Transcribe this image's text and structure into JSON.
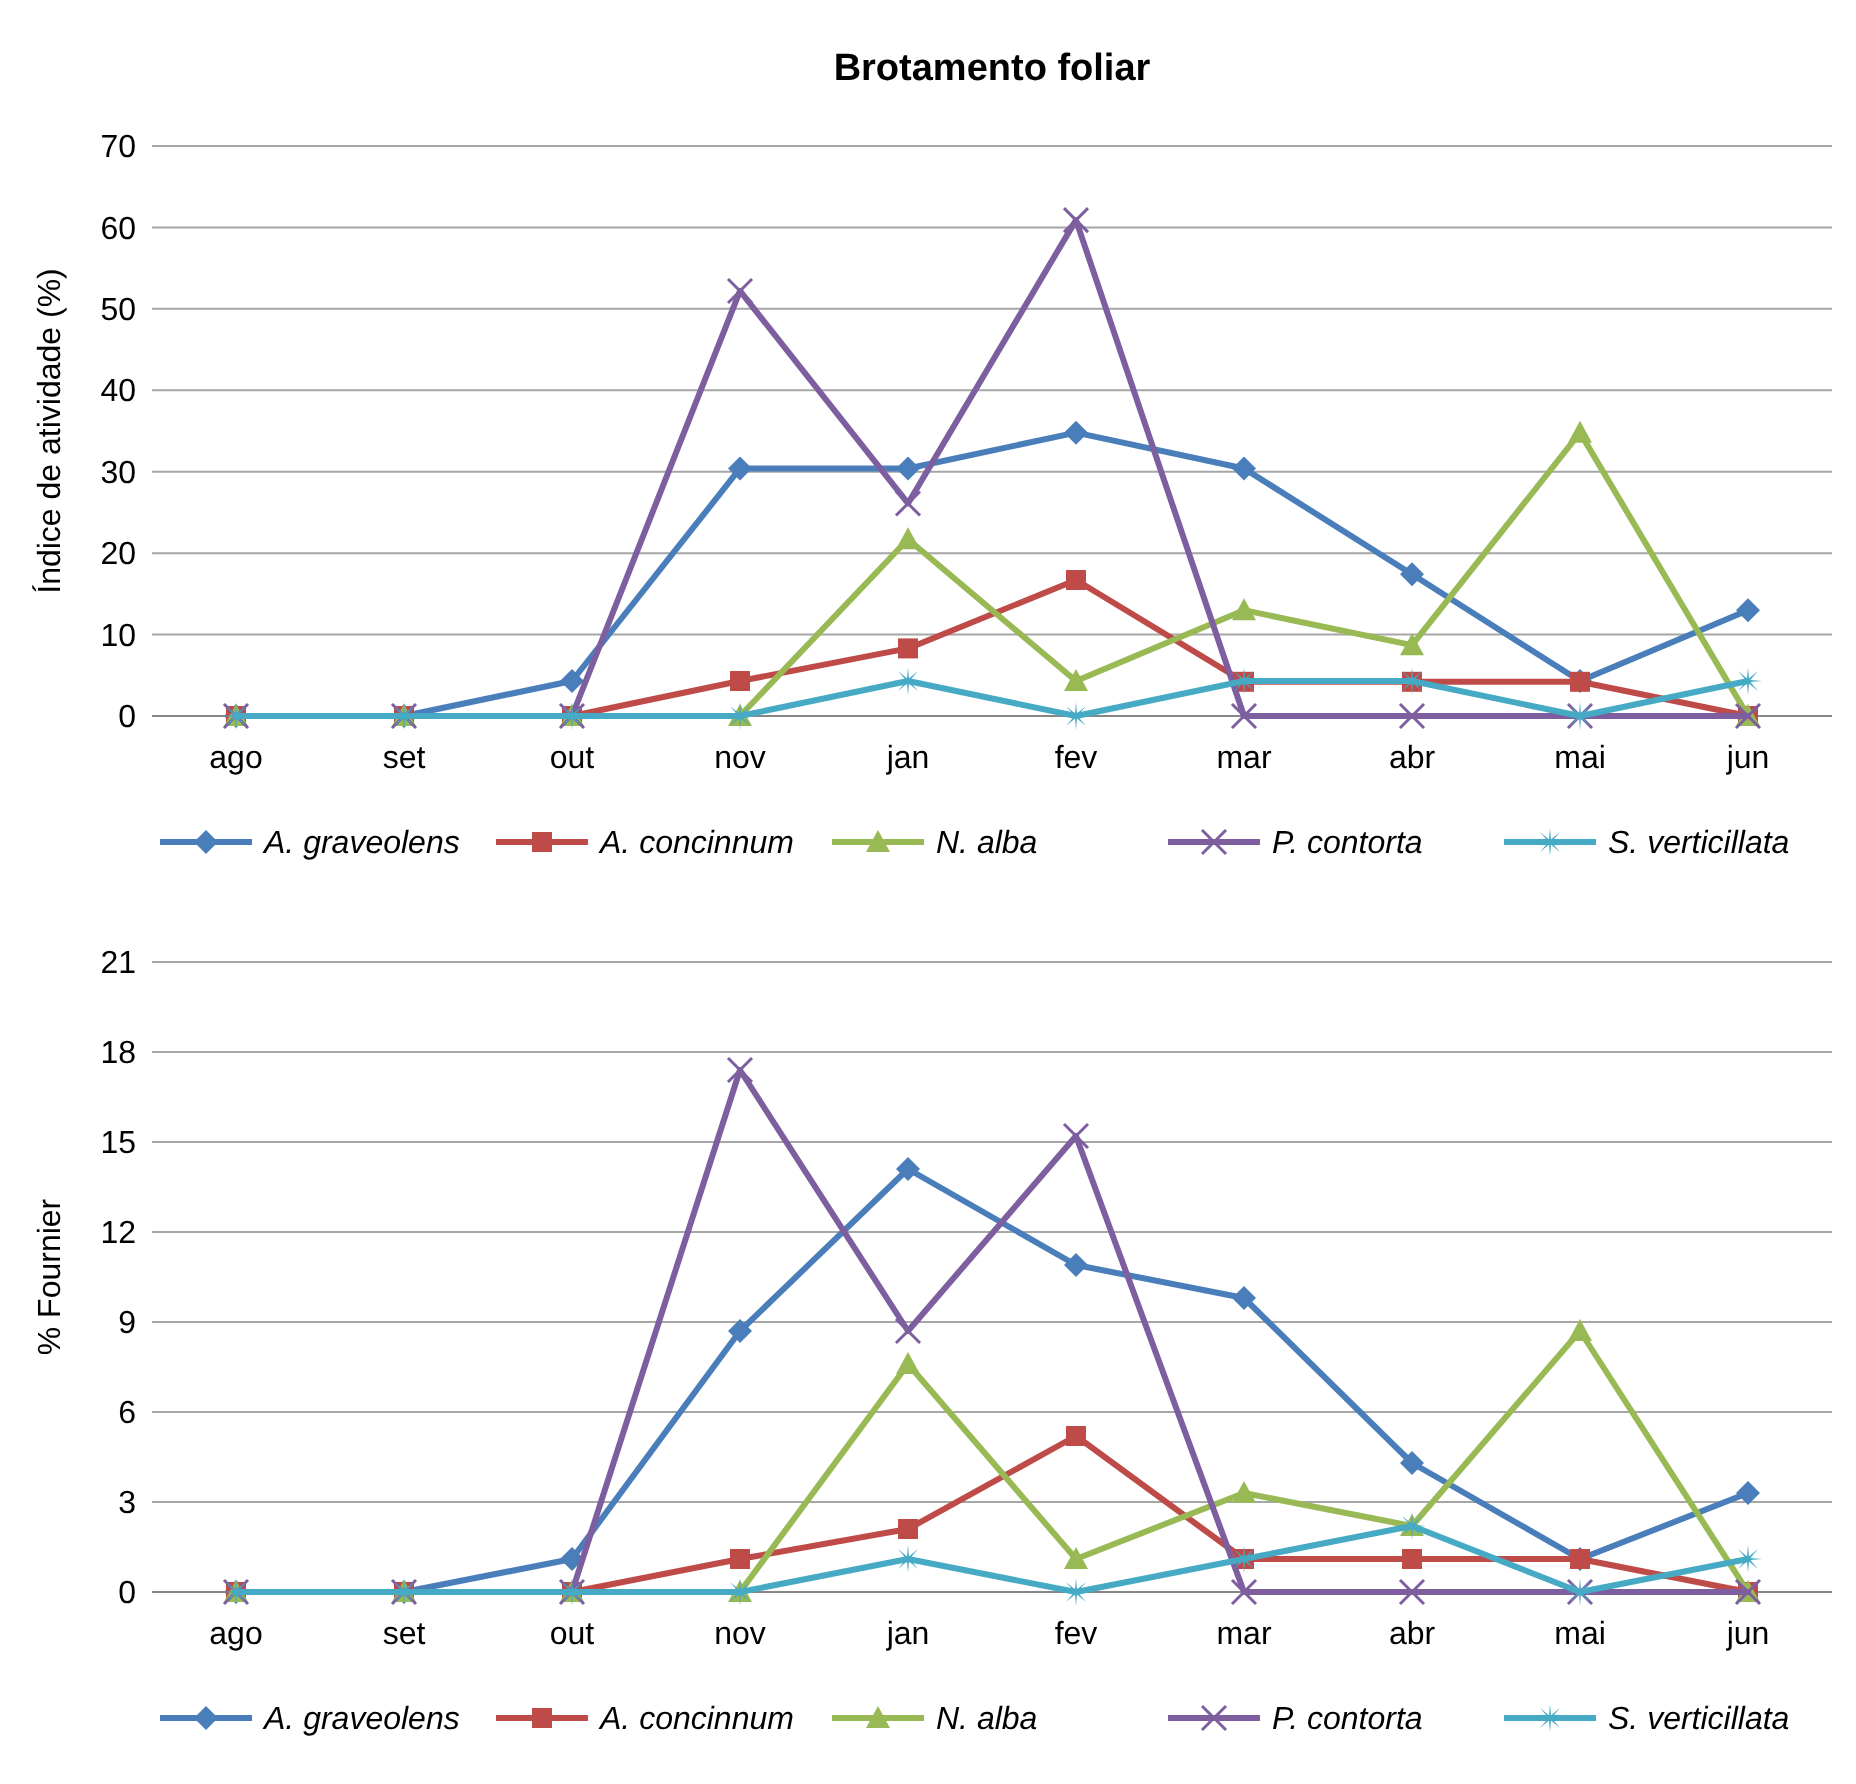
{
  "chart_data": [
    {
      "type": "line",
      "title": "Brotamento foliar",
      "ylabel": "Índice de atividade (%)",
      "categories": [
        "ago",
        "set",
        "out",
        "nov",
        "jan",
        "fev",
        "mar",
        "abr",
        "mai",
        "jun"
      ],
      "ylim": [
        0,
        70
      ],
      "yticks": [
        0,
        10,
        20,
        30,
        40,
        50,
        60,
        70
      ],
      "grid": "y",
      "legend": "bottom",
      "series": [
        {
          "name": "A. graveolens",
          "color": "#4a7ebb",
          "marker": "diamond",
          "values": [
            0,
            0,
            4.3,
            30.4,
            30.4,
            34.8,
            30.4,
            17.4,
            4.3,
            13.0
          ]
        },
        {
          "name": "A. concinnum",
          "color": "#be4b48",
          "marker": "square",
          "values": [
            0,
            0,
            0,
            4.3,
            8.3,
            16.7,
            4.2,
            4.2,
            4.2,
            0
          ]
        },
        {
          "name": "N. alba",
          "color": "#98b954",
          "marker": "triangle",
          "values": [
            0,
            0,
            0,
            0,
            21.7,
            4.3,
            13.0,
            8.7,
            34.8,
            0
          ]
        },
        {
          "name": "P. contorta",
          "color": "#7d5fa0",
          "marker": "cross",
          "values": [
            0,
            0,
            0,
            52.2,
            26.1,
            60.9,
            0,
            0,
            0,
            0
          ]
        },
        {
          "name": "S. verticillata",
          "color": "#46aac5",
          "marker": "star",
          "values": [
            0,
            0,
            0,
            0,
            4.3,
            0,
            4.3,
            4.3,
            0,
            4.3
          ]
        }
      ]
    },
    {
      "type": "line",
      "ylabel": "% Fournier",
      "categories": [
        "ago",
        "set",
        "out",
        "nov",
        "jan",
        "fev",
        "mar",
        "abr",
        "mai",
        "jun"
      ],
      "ylim": [
        0,
        21
      ],
      "yticks": [
        0,
        3,
        6,
        9,
        12,
        15,
        18,
        21
      ],
      "grid": "y",
      "legend": "bottom",
      "series": [
        {
          "name": "A. graveolens",
          "color": "#4a7ebb",
          "marker": "diamond",
          "values": [
            0,
            0,
            1.1,
            8.7,
            14.1,
            10.9,
            9.8,
            4.3,
            1.1,
            3.3
          ]
        },
        {
          "name": "A. concinnum",
          "color": "#be4b48",
          "marker": "square",
          "values": [
            0,
            0,
            0,
            1.1,
            2.1,
            5.2,
            1.1,
            1.1,
            1.1,
            0
          ]
        },
        {
          "name": "N. alba",
          "color": "#98b954",
          "marker": "triangle",
          "values": [
            0,
            0,
            0,
            0,
            7.6,
            1.1,
            3.3,
            2.2,
            8.7,
            0
          ]
        },
        {
          "name": "P. contorta",
          "color": "#7d5fa0",
          "marker": "cross",
          "values": [
            0,
            0,
            0,
            17.4,
            8.7,
            15.2,
            0,
            0,
            0,
            0
          ]
        },
        {
          "name": "S. verticillata",
          "color": "#46aac5",
          "marker": "star",
          "values": [
            0,
            0,
            0,
            0,
            1.1,
            0,
            1.1,
            2.2,
            0,
            1.1
          ]
        }
      ]
    }
  ]
}
